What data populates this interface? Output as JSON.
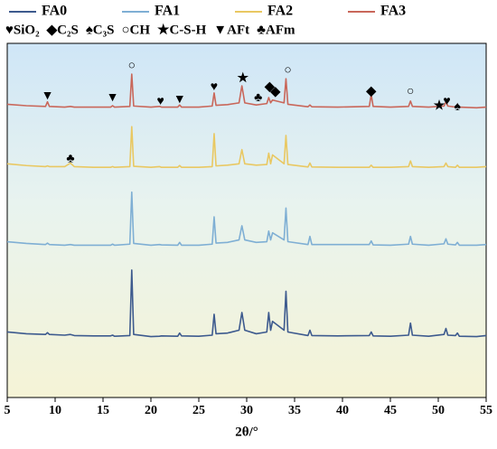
{
  "chart_data": {
    "type": "line",
    "xlabel": "2θ/°",
    "xlim": [
      5,
      55
    ],
    "xticks": [
      5,
      10,
      15,
      20,
      25,
      30,
      35,
      40,
      45,
      50,
      55
    ],
    "ylim": [
      0,
      100
    ],
    "x": [
      5,
      7,
      9,
      9.2,
      9.4,
      11,
      11.6,
      12,
      14,
      15.8,
      16,
      16.2,
      17.8,
      18,
      18.2,
      20,
      20.9,
      21.1,
      22.8,
      23,
      23.2,
      25,
      26.4,
      26.6,
      26.8,
      28,
      29.2,
      29.5,
      29.8,
      31,
      32.1,
      32.3,
      32.5,
      32.7,
      33.9,
      34.1,
      34.3,
      36.4,
      36.6,
      36.8,
      39.5,
      42.8,
      43,
      43.2,
      45,
      46.9,
      47.1,
      47.3,
      49,
      50.6,
      50.8,
      51,
      51.8,
      52,
      52.2,
      54,
      55
    ],
    "series": [
      {
        "name": "FA0",
        "color": "#3d5a8e",
        "values": [
          18.5,
          18,
          17.8,
          18.3,
          17.8,
          17.6,
          17.8,
          17.5,
          17.4,
          17.4,
          17.6,
          17.3,
          17.5,
          36,
          17.8,
          17.2,
          17.3,
          17.4,
          17.3,
          18.2,
          17.4,
          17.3,
          17.6,
          23.5,
          18,
          18.2,
          19,
          24,
          19,
          18,
          18.5,
          24,
          19,
          21.5,
          19,
          30,
          18.5,
          17.5,
          19,
          17.5,
          17.4,
          17.5,
          18.5,
          17.4,
          17.3,
          17.6,
          21,
          17.6,
          17.3,
          17.8,
          19.5,
          17.6,
          17.5,
          18.2,
          17.3,
          17.2,
          17.5
        ]
      },
      {
        "name": "FA1",
        "color": "#7fafd4",
        "values": [
          44,
          43.5,
          43.2,
          43.6,
          43.2,
          43,
          43.2,
          43,
          43,
          43,
          43.3,
          43,
          43.3,
          58,
          43.5,
          43,
          43.2,
          43.1,
          43,
          43.8,
          43,
          43,
          43.3,
          51,
          43.6,
          43.8,
          44.5,
          48.5,
          44.5,
          43.8,
          44,
          47,
          44.5,
          46.5,
          44.5,
          53.5,
          44,
          43.2,
          45.5,
          43.2,
          43.2,
          43.2,
          44.2,
          43.1,
          43,
          43.3,
          45.5,
          43.3,
          43,
          43.4,
          44.8,
          43.3,
          43.1,
          43.8,
          43,
          43,
          43.2
        ]
      },
      {
        "name": "FA2",
        "color": "#e9c862",
        "values": [
          66,
          65.5,
          65.2,
          65.4,
          65.2,
          65.2,
          66.2,
          65.2,
          65,
          65,
          65.2,
          65,
          65.2,
          76.5,
          65.3,
          65,
          65.2,
          65,
          65,
          65.5,
          65,
          65,
          65.2,
          74.5,
          65.4,
          65.6,
          66,
          70,
          66,
          65.6,
          65.8,
          69,
          66,
          68.5,
          66,
          74,
          65.8,
          65.1,
          66.2,
          65.1,
          65,
          65,
          65.6,
          65,
          65,
          65.2,
          66.8,
          65.2,
          65,
          65.2,
          66.2,
          65.2,
          65,
          65.6,
          65,
          65,
          65.2
        ]
      },
      {
        "name": "FA3",
        "color": "#c9675a",
        "values": [
          82.8,
          82.4,
          82.2,
          83.5,
          82.2,
          82,
          82.2,
          82,
          82,
          82,
          82.4,
          82,
          82.2,
          91.3,
          82.3,
          82,
          82.2,
          82,
          82,
          82.6,
          82,
          82,
          82.3,
          86,
          82.5,
          82.7,
          83.2,
          88,
          83.2,
          82.6,
          83,
          84.7,
          83.2,
          84,
          83.2,
          90,
          82.8,
          82.1,
          82.6,
          82.1,
          82,
          82.2,
          85.5,
          82.2,
          82,
          82.2,
          83.7,
          82.2,
          82,
          82.3,
          83.5,
          82.3,
          82,
          82.8,
          82,
          81.8,
          82
        ]
      }
    ],
    "phase_legend": [
      "♥SiO₂",
      "◆C₂S",
      "♠C₃S",
      "○CH",
      "★C-S-H",
      "▼AFt",
      "♣AFm"
    ],
    "annotations": [
      {
        "text": "▼",
        "x": 9.2,
        "y": 85
      },
      {
        "text": "▼",
        "x": 16,
        "y": 84.5
      },
      {
        "text": "○",
        "x": 18,
        "y": 93.6
      },
      {
        "text": "♥",
        "x": 21,
        "y": 83.5
      },
      {
        "text": "▼",
        "x": 23,
        "y": 84
      },
      {
        "text": "♥",
        "x": 26.6,
        "y": 87.5
      },
      {
        "text": "★",
        "x": 29.6,
        "y": 90
      },
      {
        "text": "♣",
        "x": 31.2,
        "y": 84.5
      },
      {
        "text": "◆",
        "x": 32.4,
        "y": 87.5
      },
      {
        "text": "◆",
        "x": 33,
        "y": 86.2
      },
      {
        "text": "○",
        "x": 34.3,
        "y": 92.3
      },
      {
        "text": "◆",
        "x": 43,
        "y": 86.3
      },
      {
        "text": "○",
        "x": 47.1,
        "y": 86.3
      },
      {
        "text": "★",
        "x": 50.1,
        "y": 82.2
      },
      {
        "text": "♥",
        "x": 50.9,
        "y": 83.5
      },
      {
        "text": "♠",
        "x": 52,
        "y": 82
      },
      {
        "text": "♣",
        "x": 11.6,
        "y": 67.3
      }
    ]
  }
}
